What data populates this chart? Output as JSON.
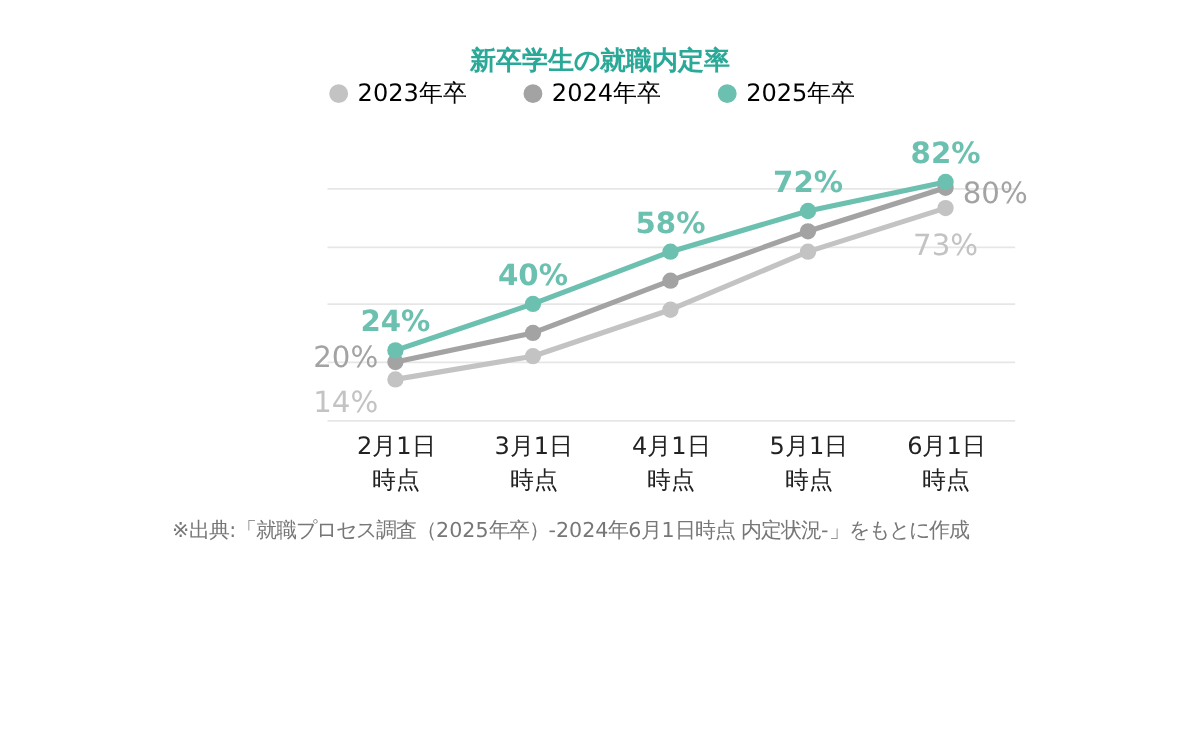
{
  "chart_data": {
    "type": "line",
    "title": "新卒学生の就職内定率",
    "categories": [
      "2月1日時点",
      "3月1日時点",
      "4月1日時点",
      "5月1日時点",
      "6月1日時点"
    ],
    "series": [
      {
        "name": "2023年卒",
        "color": "#c3c3c3",
        "values": [
          14,
          22,
          38,
          58,
          73
        ],
        "value_labels": [
          "14%",
          null,
          null,
          null,
          "73%"
        ]
      },
      {
        "name": "2024年卒",
        "color": "#a3a3a3",
        "values": [
          20,
          30,
          48,
          65,
          80
        ],
        "value_labels": [
          "20%",
          null,
          null,
          null,
          "80%"
        ]
      },
      {
        "name": "2025年卒",
        "color": "#6cc0b0",
        "values": [
          24,
          40,
          58,
          72,
          82
        ],
        "value_labels": [
          "24%",
          "40%",
          "58%",
          "72%",
          "82%"
        ]
      }
    ],
    "grid": "y",
    "legend": "top",
    "marker": "circle",
    "line_style": "solid",
    "tick_labels": "x",
    "annotations": [
      "※出典:「就職プロセス調査（2025年卒）-2024年6月1日時点 内定状況-」をもとに作成"
    ]
  }
}
